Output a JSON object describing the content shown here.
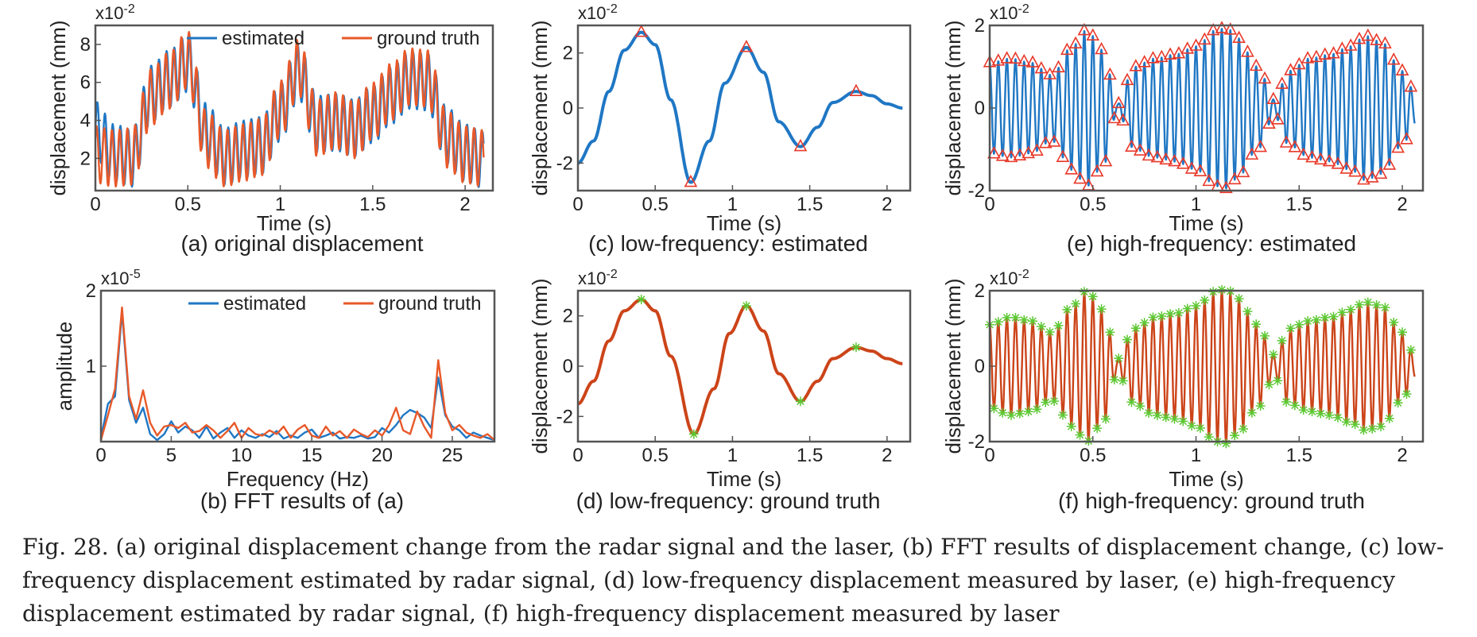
{
  "figure": {
    "caption": "Fig. 28.  (a) original displacement change from the radar signal and the laser, (b) FFT results of displacement change, (c) low-frequency displacement estimated by radar signal, (d) low-frequency displacement measured by laser, (e) high-frequency displacement estimated by radar signal, (f) high-frequency displacement measured by laser"
  },
  "colors": {
    "estimated": "#1f77c4",
    "ground_truth": "#e8592a",
    "lf_gt": "#cc4419",
    "triangle": "#e8392a",
    "star": "#5cc832"
  },
  "chart_data": [
    {
      "id": "a",
      "type": "line",
      "subtitle": "(a) original displacement",
      "xlabel": "Time (s)",
      "ylabel": "displacement (mm)",
      "multiplier": "x10-2",
      "xlim": [
        0,
        2.15
      ],
      "ylim": [
        0.3,
        9.0
      ],
      "xticks": [
        "0",
        "0.5",
        "1",
        "1.5",
        "2"
      ],
      "yticks": [
        "2",
        "4",
        "6",
        "8"
      ],
      "legend": "top-right",
      "series": [
        {
          "name": "estimated",
          "color": "#1f77c4",
          "x": [
            0,
            0.1,
            0.2,
            0.3,
            0.4,
            0.5,
            0.6,
            0.7,
            0.8,
            0.9,
            1.0,
            1.1,
            1.2,
            1.3,
            1.4,
            1.5,
            1.6,
            1.7,
            1.8,
            1.9,
            2.0,
            2.1
          ],
          "y": [
            3.5,
            2.3,
            2.0,
            5.4,
            6.2,
            7.0,
            3.4,
            2.1,
            2.5,
            2.7,
            4.4,
            6.6,
            3.8,
            3.9,
            3.6,
            4.3,
            5.3,
            6.1,
            6.0,
            3.2,
            2.3,
            1.9
          ]
        },
        {
          "name": "ground truth",
          "color": "#e8592a",
          "x": [
            0,
            0.1,
            0.2,
            0.3,
            0.4,
            0.5,
            0.6,
            0.7,
            0.8,
            0.9,
            1.0,
            1.1,
            1.2,
            1.3,
            1.4,
            1.5,
            1.6,
            1.7,
            1.8,
            1.9,
            2.0,
            2.1
          ],
          "y": [
            2.2,
            2.0,
            2.1,
            5.2,
            6.1,
            7.2,
            3.0,
            2.0,
            2.3,
            2.6,
            4.6,
            6.8,
            3.6,
            4.0,
            3.5,
            4.5,
            5.5,
            6.3,
            6.2,
            3.0,
            2.2,
            2.0
          ]
        }
      ]
    },
    {
      "id": "b",
      "type": "line",
      "subtitle": "(b) FFT results of (a)",
      "xlabel": "Frequency (Hz)",
      "ylabel": "amplitude",
      "multiplier": "x10-5",
      "xlim": [
        0,
        28
      ],
      "ylim": [
        0,
        2
      ],
      "xticks": [
        "0",
        "5",
        "10",
        "15",
        "20",
        "25"
      ],
      "yticks": [
        "1",
        "2"
      ],
      "legend": "top-right",
      "series": [
        {
          "name": "estimated",
          "color": "#1f77c4",
          "x": [
            0,
            0.5,
            1,
            1.5,
            2,
            2.5,
            3,
            3.5,
            4,
            4.5,
            5,
            5.5,
            6,
            6.5,
            7,
            7.5,
            8,
            8.5,
            9,
            9.5,
            10,
            10.5,
            11,
            11.5,
            12,
            12.5,
            13,
            13.5,
            14,
            14.5,
            15,
            15.5,
            16,
            16.5,
            17,
            17.5,
            18,
            18.5,
            19,
            19.5,
            20,
            20.5,
            21,
            21.5,
            22,
            22.5,
            23,
            23.5,
            24,
            24.5,
            25,
            25.5,
            26,
            26.5,
            27,
            27.5,
            28
          ],
          "y": [
            0.05,
            0.5,
            0.6,
            1.72,
            0.55,
            0.25,
            0.45,
            0.1,
            0.02,
            0.1,
            0.27,
            0.12,
            0.2,
            0.15,
            0.05,
            0.2,
            0.04,
            0.12,
            0.18,
            0.05,
            0.15,
            0.08,
            0.05,
            0.1,
            0.06,
            0.14,
            0.04,
            0.08,
            0.05,
            0.12,
            0.16,
            0.05,
            0.08,
            0.12,
            0.04,
            0.06,
            0.05,
            0.08,
            0.04,
            0.06,
            0.18,
            0.12,
            0.22,
            0.35,
            0.42,
            0.38,
            0.32,
            0.18,
            0.85,
            0.35,
            0.2,
            0.15,
            0.05,
            0.12,
            0.08,
            0.05,
            0.02
          ]
        },
        {
          "name": "ground truth",
          "color": "#e8592a",
          "x": [
            0,
            0.5,
            1,
            1.5,
            2,
            2.5,
            3,
            3.5,
            4,
            4.5,
            5,
            5.5,
            6,
            6.5,
            7,
            7.5,
            8,
            8.5,
            9,
            9.5,
            10,
            10.5,
            11,
            11.5,
            12,
            12.5,
            13,
            13.5,
            14,
            14.5,
            15,
            15.5,
            16,
            16.5,
            17,
            17.5,
            18,
            18.5,
            19,
            19.5,
            20,
            20.5,
            21,
            21.5,
            22,
            22.5,
            23,
            23.5,
            24,
            24.5,
            25,
            25.5,
            26,
            26.5,
            27,
            27.5,
            28
          ],
          "y": [
            0.02,
            0.35,
            0.7,
            1.78,
            0.6,
            0.3,
            0.68,
            0.25,
            0.08,
            0.2,
            0.22,
            0.18,
            0.25,
            0.12,
            0.14,
            0.22,
            0.15,
            0.05,
            0.14,
            0.25,
            0.05,
            0.18,
            0.1,
            0.08,
            0.15,
            0.1,
            0.2,
            0.05,
            0.16,
            0.22,
            0.08,
            0.05,
            0.2,
            0.08,
            0.14,
            0.05,
            0.16,
            0.1,
            0.06,
            0.15,
            0.08,
            0.22,
            0.45,
            0.15,
            0.1,
            0.4,
            0.2,
            0.05,
            1.08,
            0.38,
            0.15,
            0.22,
            0.12,
            0.08,
            0.05,
            0.1,
            0.02
          ]
        }
      ]
    },
    {
      "id": "c",
      "type": "line",
      "subtitle": "(c) low-frequency: estimated",
      "xlabel": "Time (s)",
      "ylabel": "displacement (mm)",
      "multiplier": "x10-2",
      "xlim": [
        0,
        2.15
      ],
      "ylim": [
        -3,
        3
      ],
      "xticks": [
        "0",
        "0.5",
        "1",
        "1.5",
        "2"
      ],
      "yticks": [
        "-2",
        "0",
        "2"
      ],
      "marker": "triangle",
      "series": [
        {
          "color": "#1f77c4",
          "x": [
            0,
            0.1,
            0.2,
            0.3,
            0.41,
            0.5,
            0.6,
            0.73,
            0.85,
            0.95,
            1.09,
            1.2,
            1.3,
            1.44,
            1.55,
            1.65,
            1.8,
            1.9,
            2.0,
            2.1
          ],
          "y": [
            -2.0,
            -1.2,
            0.6,
            2.1,
            2.75,
            2.3,
            0.3,
            -2.7,
            -1.2,
            0.9,
            2.2,
            1.3,
            -0.5,
            -1.4,
            -0.7,
            0.2,
            0.6,
            0.45,
            0.15,
            0.0
          ]
        }
      ],
      "extrema": {
        "x": [
          0.41,
          0.73,
          1.09,
          1.44,
          1.8
        ],
        "y": [
          2.75,
          -2.7,
          2.2,
          -1.4,
          0.6
        ]
      }
    },
    {
      "id": "d",
      "type": "line",
      "subtitle": "(d) low-frequency: ground truth",
      "xlabel": "Time (s)",
      "ylabel": "displacement (mm)",
      "multiplier": "x10-2",
      "xlim": [
        0,
        2.15
      ],
      "ylim": [
        -3,
        3
      ],
      "xticks": [
        "0",
        "0.5",
        "1",
        "1.5",
        "2"
      ],
      "yticks": [
        "-2",
        "0",
        "2"
      ],
      "marker": "star",
      "series": [
        {
          "color": "#cc4419",
          "x": [
            0,
            0.1,
            0.2,
            0.3,
            0.41,
            0.5,
            0.6,
            0.75,
            0.88,
            0.98,
            1.09,
            1.2,
            1.3,
            1.44,
            1.55,
            1.65,
            1.8,
            1.9,
            2.0,
            2.1
          ],
          "y": [
            -1.5,
            -0.6,
            1.0,
            2.2,
            2.65,
            2.2,
            0.4,
            -2.7,
            -0.9,
            1.3,
            2.4,
            1.4,
            -0.3,
            -1.4,
            -0.6,
            0.3,
            0.75,
            0.6,
            0.3,
            0.1
          ]
        }
      ],
      "extrema": {
        "x": [
          0.41,
          0.75,
          1.09,
          1.44,
          1.8
        ],
        "y": [
          2.65,
          -2.7,
          2.4,
          -1.4,
          0.75
        ]
      }
    },
    {
      "id": "e",
      "type": "line",
      "subtitle": "(e) high-frequency: estimated",
      "xlabel": "Time (s)",
      "ylabel": "displacement (mm)",
      "multiplier": "x10-2",
      "xlim": [
        0,
        2.1
      ],
      "ylim": [
        -2,
        2
      ],
      "xticks": [
        "0",
        "0.5",
        "1",
        "1.5",
        "2"
      ],
      "yticks": [
        "-2",
        "0",
        "2"
      ],
      "marker": "triangle",
      "oscillation_hz": 24,
      "series": [
        {
          "color": "#1f77c4",
          "envelope_x": [
            0,
            0.1,
            0.2,
            0.3,
            0.4,
            0.47,
            0.55,
            0.62,
            0.7,
            0.8,
            0.9,
            1.0,
            1.1,
            1.15,
            1.2,
            1.3,
            1.38,
            1.45,
            1.55,
            1.65,
            1.75,
            1.82,
            1.9,
            2.0,
            2.06
          ],
          "envelope_y": [
            1.1,
            1.2,
            1.1,
            0.8,
            1.5,
            1.9,
            1.4,
            0.1,
            1.0,
            1.2,
            1.3,
            1.5,
            1.9,
            1.95,
            1.7,
            1.0,
            0.2,
            0.9,
            1.2,
            1.3,
            1.5,
            1.75,
            1.6,
            0.9,
            0.4
          ]
        }
      ]
    },
    {
      "id": "f",
      "type": "line",
      "subtitle": "(f) high-frequency: ground truth",
      "xlabel": "Time (s)",
      "ylabel": "displacement (mm)",
      "multiplier": "x10-2",
      "xlim": [
        0,
        2.1
      ],
      "ylim": [
        -2,
        2
      ],
      "xticks": [
        "0",
        "0.5",
        "1",
        "1.5",
        "2"
      ],
      "yticks": [
        "-2",
        "0",
        "2"
      ],
      "marker": "star",
      "oscillation_hz": 24,
      "series": [
        {
          "color": "#cc4419",
          "envelope_x": [
            0,
            0.1,
            0.2,
            0.3,
            0.4,
            0.47,
            0.55,
            0.62,
            0.7,
            0.8,
            0.9,
            1.0,
            1.1,
            1.15,
            1.2,
            1.3,
            1.38,
            1.45,
            1.55,
            1.65,
            1.75,
            1.82,
            1.9,
            2.0,
            2.06
          ],
          "envelope_y": [
            1.1,
            1.3,
            1.2,
            0.9,
            1.6,
            2.0,
            1.5,
            0.2,
            1.0,
            1.3,
            1.4,
            1.6,
            2.0,
            2.05,
            1.8,
            1.1,
            0.3,
            1.0,
            1.2,
            1.3,
            1.5,
            1.7,
            1.6,
            0.9,
            0.3
          ]
        }
      ]
    }
  ]
}
